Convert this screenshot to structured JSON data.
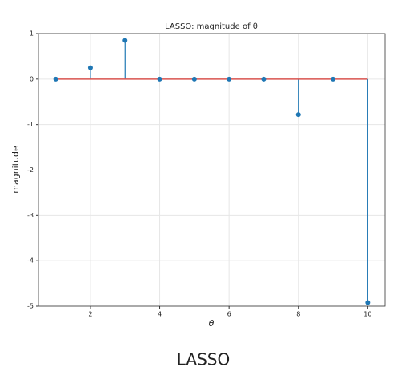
{
  "chart_data": {
    "type": "stem",
    "title": "LASSO: magnitude of θ",
    "x_label": "θ",
    "y_label": "magnitude",
    "x": [
      1,
      2,
      3,
      4,
      5,
      6,
      7,
      8,
      9,
      10
    ],
    "values": [
      0,
      0.25,
      0.85,
      0,
      0,
      0,
      0,
      -0.78,
      0,
      -4.92
    ],
    "color": "#1f77b4",
    "baseline_color": "#d9534f",
    "xlim": [
      0.5,
      10.5
    ],
    "xticks": [
      2,
      4,
      6,
      8,
      10
    ],
    "ylim": [
      -5,
      1
    ],
    "yticks": [
      -5,
      -4,
      -3,
      -2,
      -1,
      0,
      1
    ],
    "grid": true
  },
  "caption": "LASSO"
}
